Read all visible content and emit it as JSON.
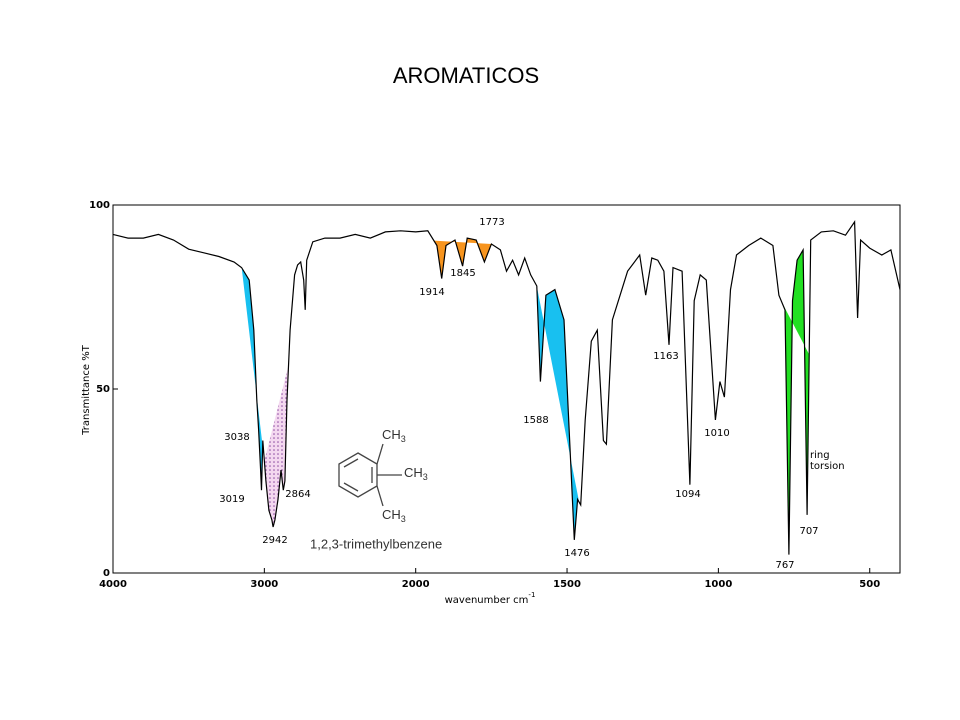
{
  "chart_data": {
    "type": "line",
    "title": "AROMATICOS",
    "x_label": "wavenumber cm",
    "x_label_sup": "-1",
    "y_label": "Transmittance %T",
    "xlim": [
      4000,
      400
    ],
    "xticks": [
      4000,
      3000,
      2000,
      1500,
      1000,
      500
    ],
    "x_scale_break": 2000,
    "x_scale_ratio": 2,
    "ylim": [
      0,
      100
    ],
    "yticks": [
      0,
      50,
      100
    ],
    "series": [
      {
        "name": "1,2,3-trimethylbenzene",
        "color": "#000000",
        "x": [
          4000,
          3900,
          3800,
          3700,
          3600,
          3500,
          3400,
          3300,
          3200,
          3150,
          3100,
          3070,
          3050,
          3038,
          3025,
          3019,
          3010,
          2990,
          2970,
          2950,
          2942,
          2930,
          2910,
          2890,
          2875,
          2864,
          2850,
          2830,
          2800,
          2780,
          2760,
          2740,
          2730,
          2720,
          2680,
          2600,
          2500,
          2400,
          2300,
          2200,
          2100,
          2000,
          1960,
          1930,
          1914,
          1900,
          1870,
          1845,
          1830,
          1800,
          1773,
          1750,
          1720,
          1700,
          1680,
          1660,
          1640,
          1620,
          1600,
          1588,
          1570,
          1540,
          1510,
          1490,
          1476,
          1465,
          1455,
          1440,
          1420,
          1400,
          1380,
          1370,
          1350,
          1300,
          1260,
          1240,
          1220,
          1200,
          1180,
          1163,
          1150,
          1120,
          1094,
          1080,
          1060,
          1040,
          1010,
          995,
          980,
          960,
          940,
          900,
          860,
          820,
          800,
          780,
          767,
          755,
          740,
          720,
          707,
          695,
          660,
          620,
          580,
          550,
          540,
          530,
          500,
          460,
          430,
          400
        ],
        "values": [
          92,
          91,
          91,
          92,
          90.5,
          88,
          87,
          86,
          84.5,
          83,
          79.6,
          66,
          47,
          39,
          28,
          22.5,
          36,
          25,
          17,
          14.4,
          12.5,
          14.4,
          20,
          28,
          22.5,
          25,
          47,
          66,
          81,
          83.7,
          84.5,
          79.6,
          71.5,
          85,
          90,
          91,
          91,
          92,
          91,
          92.7,
          93,
          92.7,
          93,
          89,
          80,
          89,
          90.5,
          83.4,
          91,
          90.5,
          84.5,
          89.4,
          87.8,
          82,
          85,
          81,
          85.6,
          81,
          78,
          52,
          75.5,
          77,
          68.8,
          33.4,
          9,
          20,
          18.5,
          41.6,
          63,
          66,
          36,
          35,
          68.8,
          82,
          86.4,
          75.5,
          85.6,
          85,
          82,
          62,
          83,
          82,
          24,
          74,
          81,
          79.6,
          41.6,
          52,
          47.8,
          77,
          86.4,
          89,
          91,
          89,
          75.5,
          71.5,
          5,
          74,
          85,
          87.8,
          15.8,
          90.5,
          92.7,
          93,
          91.8,
          95.4,
          69.3,
          90.5,
          88.3,
          86.4,
          87.8,
          77
        ]
      }
    ],
    "shaded_bands": [
      {
        "from": 3150,
        "to": 3000,
        "color": "#18c0f0"
      },
      {
        "from": 3000,
        "to": 2840,
        "color": "#f4d8f0"
      },
      {
        "from": 1940,
        "to": 1750,
        "color": "#f7941d"
      },
      {
        "from": 1600,
        "to": 1460,
        "color": "#18c0f0"
      },
      {
        "from": 790,
        "to": 700,
        "color": "#22e022"
      }
    ],
    "peak_labels": [
      3038,
      3019,
      2942,
      2864,
      1914,
      1845,
      1773,
      1588,
      1476,
      1163,
      1094,
      1010,
      767,
      707
    ],
    "annotation": [
      "ring",
      "torsion"
    ],
    "annotation_color": "#22dd22",
    "structure": {
      "name": "1,2,3-trimethylbenzene",
      "group": "CH",
      "group_sub": "3"
    }
  }
}
